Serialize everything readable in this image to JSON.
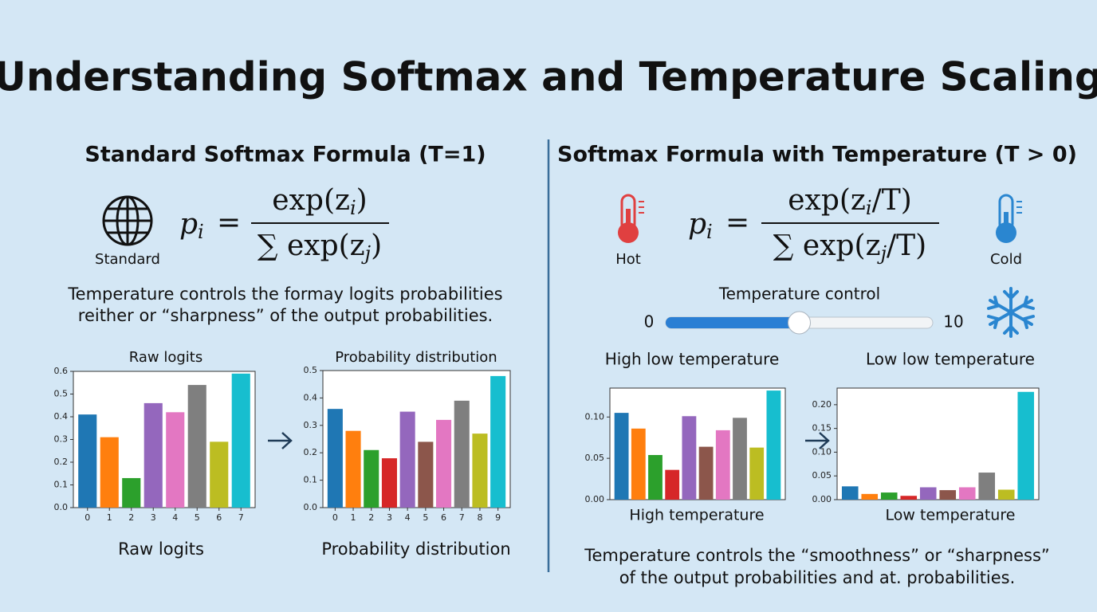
{
  "title": "Understanding Softmax and Temperature Scaling",
  "left": {
    "heading": "Standard Softmax Formula (T=1)",
    "icon_label": "Standard",
    "text": [
      "Temperature controls the formay logits probabilities",
      "reither or “sharpness” of the output probabilities."
    ],
    "captions": [
      "Raw logits",
      "Probability distribution"
    ]
  },
  "right": {
    "heading": "Softmax Formula with Temperature (T > 0)",
    "hot_label": "Hot",
    "cold_label": "Cold",
    "text": [
      "Temperature controls the “smoothness” or “sharpness”",
      "of the output probabilities and at. probabilities."
    ],
    "captions": [
      "High temperature",
      "Low temperature"
    ]
  },
  "formulas": [
    {
      "lhs": "p",
      "lhs_sub": "i",
      "eq": "=",
      "num": [
        "exp(z",
        "i",
        ")"
      ],
      "den": [
        "∑ exp(z",
        "j",
        ")"
      ]
    },
    {
      "lhs": "p",
      "lhs_sub": "i",
      "eq": "=",
      "num": [
        "exp(z",
        "i",
        "/T)"
      ],
      "den": [
        "∑ exp(z",
        "j",
        "/T)"
      ]
    }
  ],
  "slider": {
    "label": "Temperature control",
    "min": 0,
    "max": 10,
    "value": 5
  },
  "chart_data": [
    {
      "type": "bar",
      "title": "Raw logits",
      "categories": [
        "0",
        "1",
        "2",
        "3",
        "4",
        "5",
        "6",
        "7"
      ],
      "values": [
        0.41,
        0.31,
        0.13,
        0.46,
        0.42,
        0.54,
        0.29,
        0.59
      ],
      "colors": [
        "#1f77b4",
        "#ff7f0e",
        "#2ca02c",
        "#9467bd",
        "#e377c2",
        "#7f7f7f",
        "#bcbd22",
        "#17becf"
      ],
      "ylim": [
        0,
        0.6
      ],
      "yticks": [
        {
          "value": 0,
          "label": "0.0"
        },
        0.1,
        0.2,
        0.3,
        0.4,
        0.5,
        0.6
      ]
    },
    {
      "type": "bar",
      "title": "Probability distribution",
      "categories": [
        "0",
        "1",
        "2",
        "3",
        "4",
        "5",
        "6",
        "7",
        "8",
        "9"
      ],
      "values": [
        0.36,
        0.28,
        0.21,
        0.18,
        0.35,
        0.24,
        0.32,
        0.39,
        0.27,
        0.48
      ],
      "colors": [
        "#1f77b4",
        "#ff7f0e",
        "#2ca02c",
        "#d62728",
        "#9467bd",
        "#8c564b",
        "#e377c2",
        "#7f7f7f",
        "#bcbd22",
        "#17becf"
      ],
      "ylim": [
        0,
        0.5
      ],
      "yticks": [
        {
          "value": 0,
          "label": "0.0"
        },
        0.1,
        0.2,
        0.3,
        0.4,
        0.5
      ]
    },
    {
      "type": "bar",
      "title": "High low temperature",
      "categories": [
        null,
        null,
        null,
        null,
        null,
        null,
        null,
        null,
        null,
        null
      ],
      "values": [
        0.105,
        0.086,
        0.054,
        0.036,
        0.101,
        0.064,
        0.084,
        0.099,
        0.063,
        0.132
      ],
      "colors": [
        "#1f77b4",
        "#ff7f0e",
        "#2ca02c",
        "#d62728",
        "#9467bd",
        "#8c564b",
        "#e377c2",
        "#7f7f7f",
        "#bcbd22",
        "#17becf"
      ],
      "ylim": [
        0,
        0.135
      ],
      "yticks": [
        {
          "value": 0,
          "label": "0.00"
        },
        0.05,
        {
          "value": 0.1,
          "label": "0.10"
        }
      ]
    },
    {
      "type": "bar",
      "title": "Low low temperature",
      "categories": [
        null,
        null,
        null,
        null,
        null,
        null,
        null,
        null,
        null,
        null
      ],
      "values": [
        0.028,
        0.012,
        0.015,
        0.008,
        0.026,
        0.02,
        0.026,
        0.057,
        0.021,
        0.227
      ],
      "colors": [
        "#1f77b4",
        "#ff7f0e",
        "#2ca02c",
        "#d62728",
        "#9467bd",
        "#8c564b",
        "#e377c2",
        "#7f7f7f",
        "#bcbd22",
        "#17becf"
      ],
      "ylim": [
        0,
        0.235
      ],
      "yticks": [
        {
          "value": 0,
          "label": "0.00"
        },
        0.05,
        {
          "value": 0.1,
          "label": "0.10"
        },
        0.15,
        {
          "value": 0.2,
          "label": "0.20"
        }
      ]
    }
  ]
}
